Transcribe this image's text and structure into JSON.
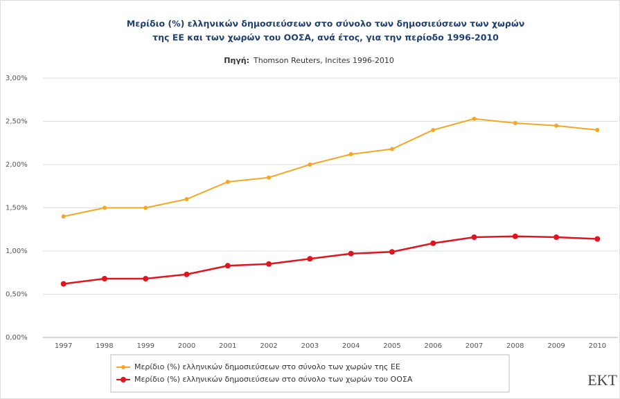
{
  "chart_data": {
    "type": "line",
    "title": [
      "Μερίδιο (%) ελληνικών δημοσιεύσεων στο σύνολο των δημοσιεύσεων των χωρών",
      "της ΕΕ και των χωρών του ΟΟΣΑ, ανά έτος, για την περίοδο 1996-2010"
    ],
    "source_label": "Πηγή:",
    "source": "Thomson Reuters, Incites 1996-2010",
    "categories": [
      "1997",
      "1998",
      "1999",
      "2000",
      "2001",
      "2002",
      "2003",
      "2004",
      "2005",
      "2006",
      "2007",
      "2008",
      "2009",
      "2010"
    ],
    "series": [
      {
        "name": "Μερίδιο (%) ελληνικών δημοσιεύσεων στο σύνολο των χωρών της ΕΕ",
        "color": "#f5a623",
        "values": [
          1.4,
          1.5,
          1.5,
          1.6,
          1.8,
          1.85,
          2.0,
          2.12,
          2.18,
          2.4,
          2.53,
          2.48,
          2.45,
          2.4
        ]
      },
      {
        "name": "Μερίδιο (%) ελληνικών δημοσιεύσεων στο σύνολο των χωρών του ΟΟΣΑ",
        "color": "#e0141e",
        "values": [
          0.62,
          0.68,
          0.68,
          0.73,
          0.83,
          0.85,
          0.91,
          0.97,
          0.99,
          1.09,
          1.16,
          1.17,
          1.16,
          1.14
        ]
      }
    ],
    "ylim": [
      0,
      3
    ],
    "yticks": [
      {
        "value": 0,
        "label": "0,00%"
      },
      {
        "value": 0.5,
        "label": "0,50%"
      },
      {
        "value": 1,
        "label": "1,00%"
      },
      {
        "value": 1.5,
        "label": "1,50%"
      },
      {
        "value": 2,
        "label": "2,00%"
      },
      {
        "value": 2.5,
        "label": "2,50%"
      },
      {
        "value": 3,
        "label": "3,00%"
      }
    ],
    "grid": true,
    "logo": "EKT"
  }
}
